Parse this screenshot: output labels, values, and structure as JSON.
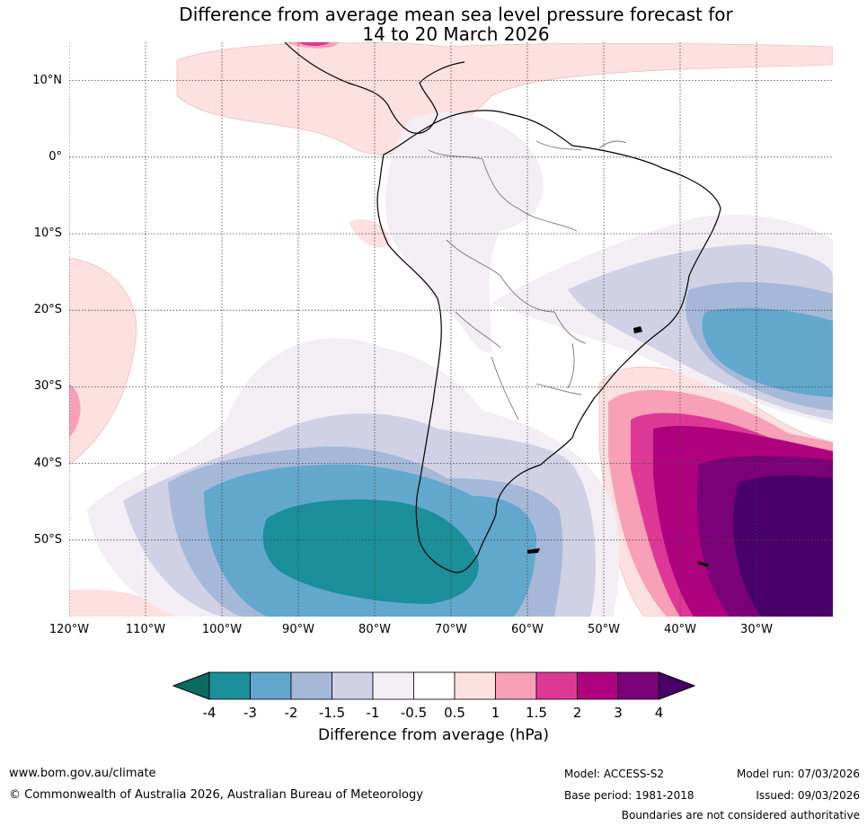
{
  "title_line1": "Difference from average mean sea level pressure forecast for",
  "title_line2": "14 to 20 March 2026",
  "lat_labels": [
    "10°N",
    "0°",
    "10°S",
    "20°S",
    "30°S",
    "40°S",
    "50°S"
  ],
  "lon_labels": [
    "120°W",
    "110°W",
    "100°W",
    "90°W",
    "80°W",
    "70°W",
    "60°W",
    "50°W",
    "40°W",
    "30°W"
  ],
  "map_extent": {
    "lon_min": -120,
    "lon_max": -20,
    "lat_min": -60,
    "lat_max": 15
  },
  "colorbar": {
    "label": "Difference from average (hPa)",
    "tick_labels": [
      "-4",
      "-3",
      "-2",
      "-1.5",
      "-1",
      "-0.5",
      "0.5",
      "1",
      "1.5",
      "2",
      "3",
      "4"
    ],
    "colors": [
      "#0a6b5e",
      "#1b8f9a",
      "#62a8cd",
      "#a6b8d8",
      "#d0d1e5",
      "#f2eef4",
      "#ffffff",
      "#fde0e0",
      "#f7a0b8",
      "#de3897",
      "#ae017e",
      "#7a0177",
      "#49006a"
    ]
  },
  "footer": {
    "website": "www.bom.gov.au/climate",
    "copyright": "© Commonwealth of Australia 2026, Australian Bureau of Meteorology",
    "model": "Model: ACCESS-S2",
    "base_period": "Base period: 1981-2018",
    "model_run": "Model run: 07/03/2026",
    "issued": "Issued: 09/03/2026",
    "disclaimer": "Boundaries are not considered authoritative"
  }
}
